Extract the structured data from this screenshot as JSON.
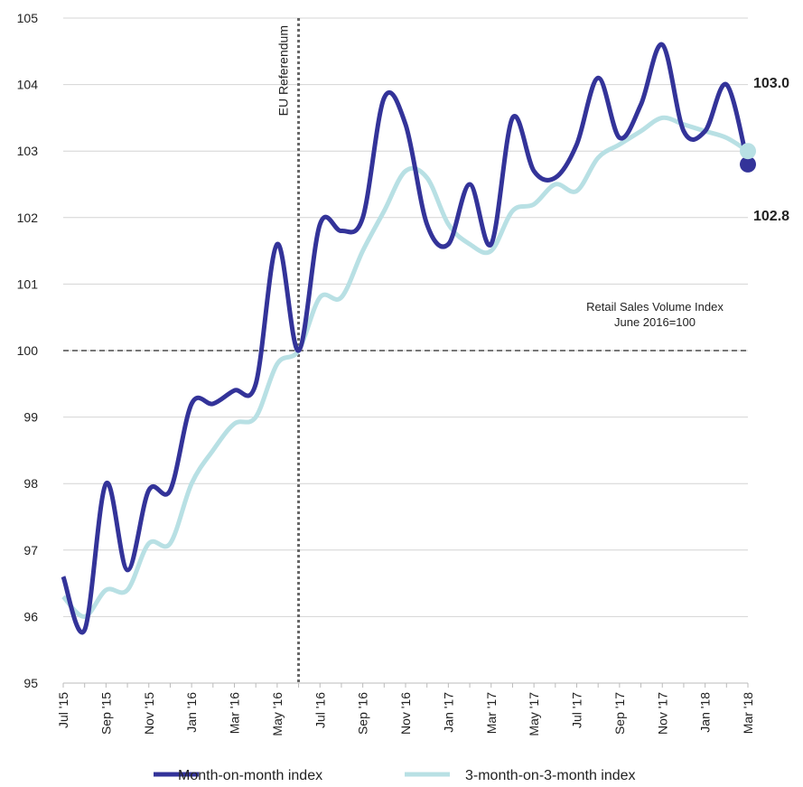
{
  "chart_data": {
    "type": "line",
    "categories": [
      "Jul '15",
      null,
      "Sep '15",
      null,
      "Nov '15",
      null,
      "Jan '16",
      null,
      "Mar '16",
      null,
      "May '16",
      null,
      "Jul '16",
      null,
      "Sep '16",
      null,
      "Nov '16",
      null,
      "Jan '17",
      null,
      "Mar '17",
      null,
      "May '17",
      null,
      "Jul '17",
      null,
      "Sep '17",
      null,
      "Nov '17",
      null,
      "Jan '18",
      null,
      "Mar '18"
    ],
    "series": [
      {
        "name": "Month-on-month index",
        "color": "#333399",
        "label_color": "#333399",
        "values": [
          96.6,
          95.8,
          98.0,
          96.7,
          97.9,
          97.9,
          99.2,
          99.2,
          99.4,
          99.5,
          101.6,
          100.0,
          101.9,
          101.8,
          102.0,
          103.8,
          103.4,
          101.9,
          101.6,
          102.5,
          101.6,
          103.5,
          102.7,
          102.6,
          103.1,
          104.1,
          103.2,
          103.7,
          104.6,
          103.3,
          103.3,
          104.0,
          102.8
        ],
        "value_labels": [
          null,
          null,
          null,
          null,
          null,
          null,
          null,
          null,
          null,
          null,
          null,
          null,
          null,
          null,
          null,
          null,
          null,
          null,
          null,
          null,
          null,
          null,
          null,
          null,
          null,
          null,
          null,
          null,
          null,
          null,
          null,
          null,
          "102.8"
        ]
      },
      {
        "name": "3-month-on-3-month index",
        "color": "#b8e0e4",
        "label_color": "#3a9090",
        "values": [
          96.3,
          96.0,
          96.4,
          96.4,
          97.1,
          97.1,
          98.0,
          98.5,
          98.9,
          99.0,
          99.8,
          100.0,
          100.8,
          100.8,
          101.5,
          102.1,
          102.7,
          102.6,
          101.9,
          101.6,
          101.5,
          102.1,
          102.2,
          102.5,
          102.4,
          102.9,
          103.1,
          103.3,
          103.5,
          103.4,
          103.3,
          103.2,
          103.0
        ],
        "value_labels": [
          null,
          null,
          null,
          null,
          null,
          null,
          null,
          null,
          null,
          null,
          null,
          null,
          null,
          null,
          null,
          null,
          null,
          null,
          null,
          null,
          null,
          null,
          null,
          null,
          null,
          null,
          null,
          null,
          null,
          null,
          null,
          null,
          "103.0"
        ]
      }
    ],
    "ylim": [
      95,
      105
    ],
    "yticks": [
      95,
      96,
      97,
      98,
      99,
      100,
      101,
      102,
      103,
      104,
      105
    ],
    "grid": true,
    "vline": {
      "at": 11,
      "label": "EU Referendum"
    },
    "hline": {
      "value": 100
    },
    "annotation": [
      "Retail Sales Volume Index",
      "June 2016=100"
    ],
    "legend": "bottom"
  }
}
